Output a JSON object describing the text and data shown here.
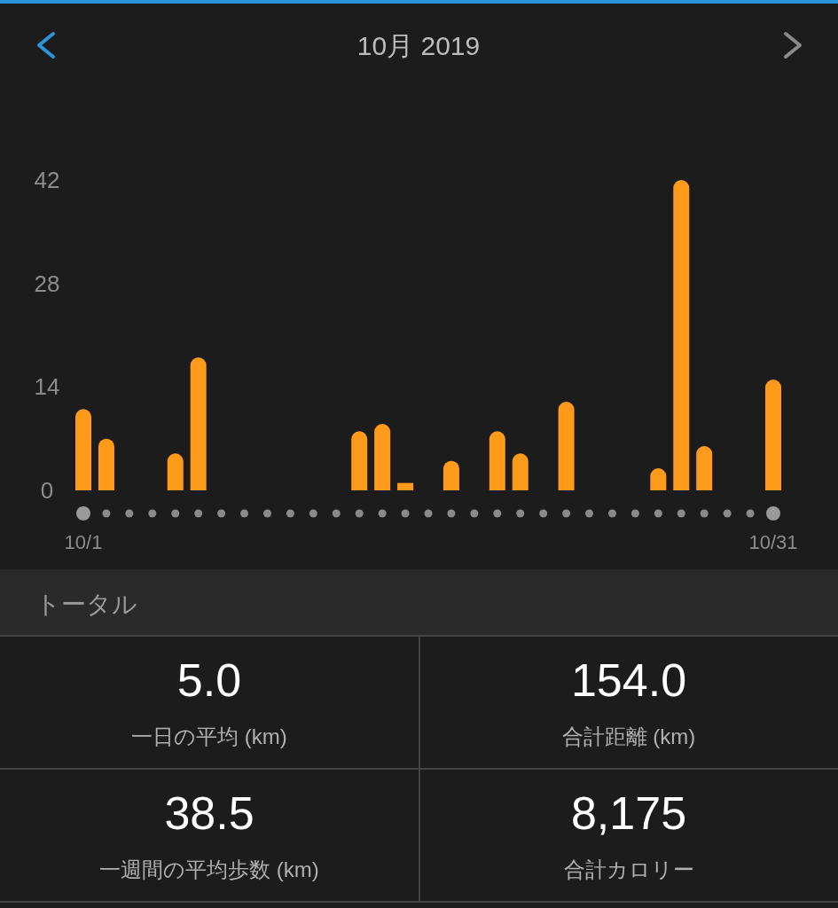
{
  "chart_data": [
    {
      "type": "bar",
      "title": "10月 2019",
      "categories": [
        "10/1",
        null,
        null,
        null,
        null,
        null,
        null,
        null,
        null,
        null,
        null,
        null,
        null,
        null,
        null,
        null,
        null,
        null,
        null,
        null,
        null,
        null,
        null,
        null,
        null,
        null,
        null,
        null,
        null,
        null,
        "10/31"
      ],
      "values": [
        11,
        7,
        0,
        0,
        5,
        18,
        0,
        0,
        0,
        0,
        0,
        0,
        8,
        9,
        1,
        0,
        4,
        0,
        8,
        5,
        0,
        12,
        0,
        0,
        0,
        3,
        42,
        6,
        0,
        0,
        15
      ],
      "color": "#ff9a1a",
      "ylim": [
        0,
        42
      ],
      "yticks": [
        0,
        14,
        28,
        42
      ]
    },
    {
      "type": "other",
      "title": "トータル",
      "annotations": [
        "5.0",
        "一日の平均 (km)",
        "154.0",
        "合計距離 (km)",
        "38.5",
        "一週間の平均歩数 (km)",
        "8,175",
        "合計カロリー"
      ]
    }
  ]
}
